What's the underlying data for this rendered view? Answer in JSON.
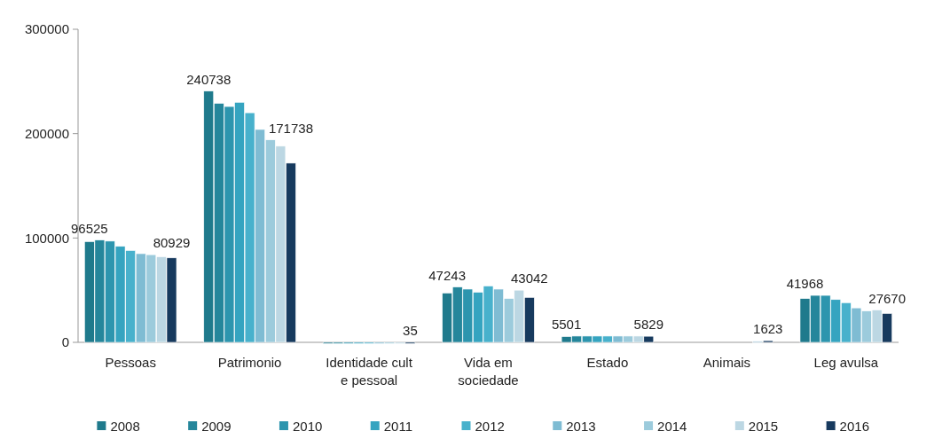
{
  "chart_data": {
    "type": "bar",
    "categories": [
      "Pessoas",
      "Patrimonio",
      "Identidade cult e pessoal",
      "Vida em sociedade",
      "Estado",
      "Animais",
      "Leg avulsa"
    ],
    "series": [
      {
        "name": "2008",
        "color": "#1f7a8c",
        "values": [
          96525,
          240738,
          0,
          47243,
          5501,
          null,
          41968
        ],
        "value_labels": [
          "96525",
          "240738",
          null,
          "47243",
          "5501",
          null,
          "41968"
        ]
      },
      {
        "name": "2009",
        "color": "#25869b",
        "values": [
          98000,
          229000,
          0,
          53000,
          6000,
          null,
          45000
        ]
      },
      {
        "name": "2010",
        "color": "#2d95ae",
        "values": [
          97000,
          226000,
          0,
          51000,
          6000,
          null,
          45000
        ]
      },
      {
        "name": "2011",
        "color": "#35a4c0",
        "values": [
          92000,
          230000,
          0,
          48000,
          6000,
          null,
          41000
        ]
      },
      {
        "name": "2012",
        "color": "#48b1cc",
        "values": [
          88000,
          220000,
          0,
          54000,
          6000,
          null,
          38000
        ]
      },
      {
        "name": "2013",
        "color": "#7fbcd3",
        "values": [
          85000,
          204000,
          0,
          51000,
          6000,
          null,
          33000
        ]
      },
      {
        "name": "2014",
        "color": "#9ccbdc",
        "values": [
          84000,
          194000,
          0,
          42000,
          6000,
          null,
          30000
        ]
      },
      {
        "name": "2015",
        "color": "#bcd7e3",
        "values": [
          82000,
          188000,
          0,
          50000,
          6000,
          1000,
          31000
        ]
      },
      {
        "name": "2016",
        "color": "#173a5e",
        "values": [
          80929,
          171738,
          35,
          43042,
          5829,
          1623,
          27670
        ],
        "value_labels": [
          "80929",
          "171738",
          "35",
          "43042",
          "5829",
          "1623",
          "27670"
        ]
      }
    ],
    "ylim": [
      0,
      300000
    ],
    "yticks": [
      0,
      100000,
      200000,
      300000
    ],
    "legend": "bottom"
  }
}
